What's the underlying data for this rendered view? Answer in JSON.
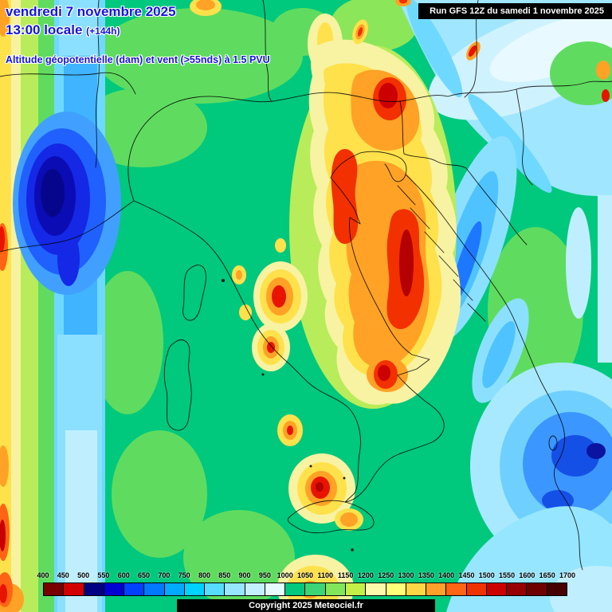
{
  "header": {
    "date_line": "vendredi 7 novembre 2025",
    "time_line": "13:00 locale",
    "time_offset": "(+144h)",
    "variable_line": "Altitude géopotentielle (dam) et vent (>55nds) à 1.5 PVU",
    "text_color": "#1515dd"
  },
  "run_info": {
    "label": "Run GFS 12Z du samedi 1 novembre 2025"
  },
  "colorbar": {
    "values": [
      "400",
      "450",
      "500",
      "550",
      "600",
      "650",
      "700",
      "750",
      "800",
      "850",
      "900",
      "950",
      "1000",
      "1050",
      "1100",
      "1150",
      "1200",
      "1250",
      "1300",
      "1350",
      "1400",
      "1450",
      "1500",
      "1550",
      "1600",
      "1650",
      "1700"
    ],
    "colors": [
      "#780000",
      "#d20000",
      "#000082",
      "#0000d2",
      "#0041ff",
      "#0078ff",
      "#00aaff",
      "#00d2ff",
      "#55dcff",
      "#96e6ff",
      "#c3f0ff",
      "#e6fbff",
      "#00c87d",
      "#3cd474",
      "#82e65a",
      "#c3f046",
      "#fafaaa",
      "#ffff78",
      "#ffd745",
      "#ffa028",
      "#ff6414",
      "#f03200",
      "#cd0000",
      "#960000",
      "#6e0000",
      "#460000"
    ]
  },
  "footer": {
    "copyright": "Copyright 2025 Meteociel.fr"
  }
}
